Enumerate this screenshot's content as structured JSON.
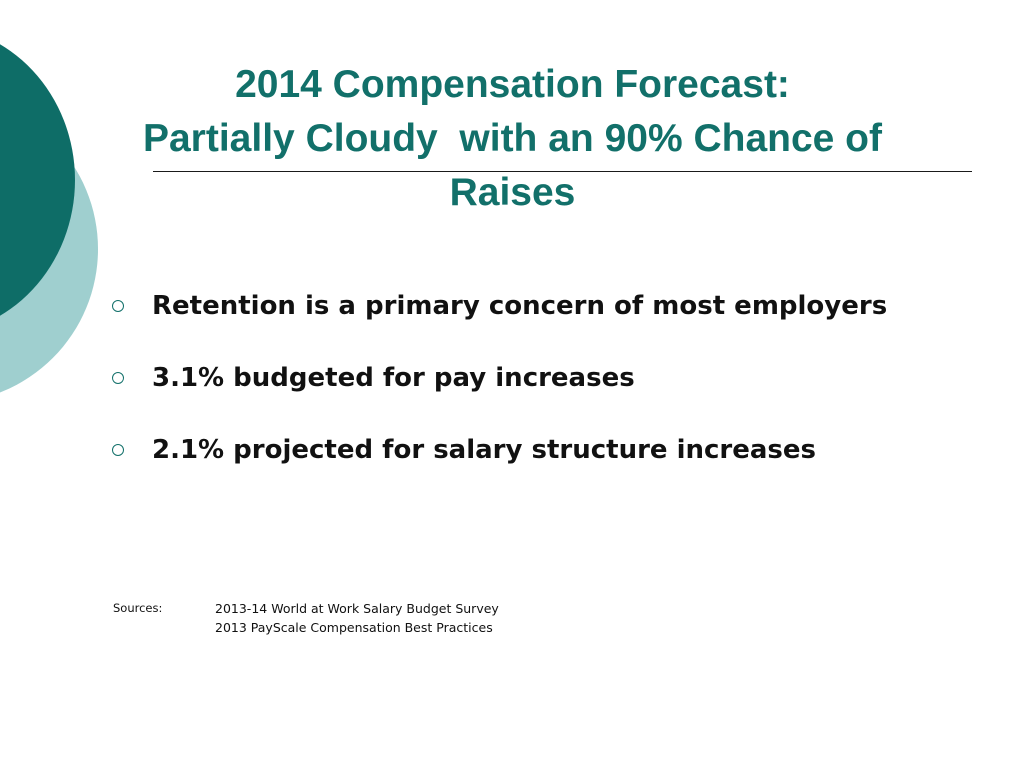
{
  "slide": {
    "title_lines": [
      "2014 Compensation Forecast:",
      "Partially Cloudy  with an 90% Chance of",
      "Raises"
    ],
    "bullets": [
      "Retention is a primary concern of most employers",
      "3.1% budgeted for pay increases",
      "2.1% projected for salary structure increases"
    ],
    "sources": {
      "label": "Sources:",
      "items": [
        "2013-14 World at Work Salary Budget Survey",
        "2013 PayScale Compensation Best Practices"
      ]
    }
  },
  "colors": {
    "title": "#12706a",
    "circle_dark": "#0e6d67",
    "circle_light": "#9fcfcf",
    "bullet_marker": "#12706a",
    "body_text": "#111111"
  },
  "icons": {
    "bullet_marker": "hollow-circle-icon"
  }
}
